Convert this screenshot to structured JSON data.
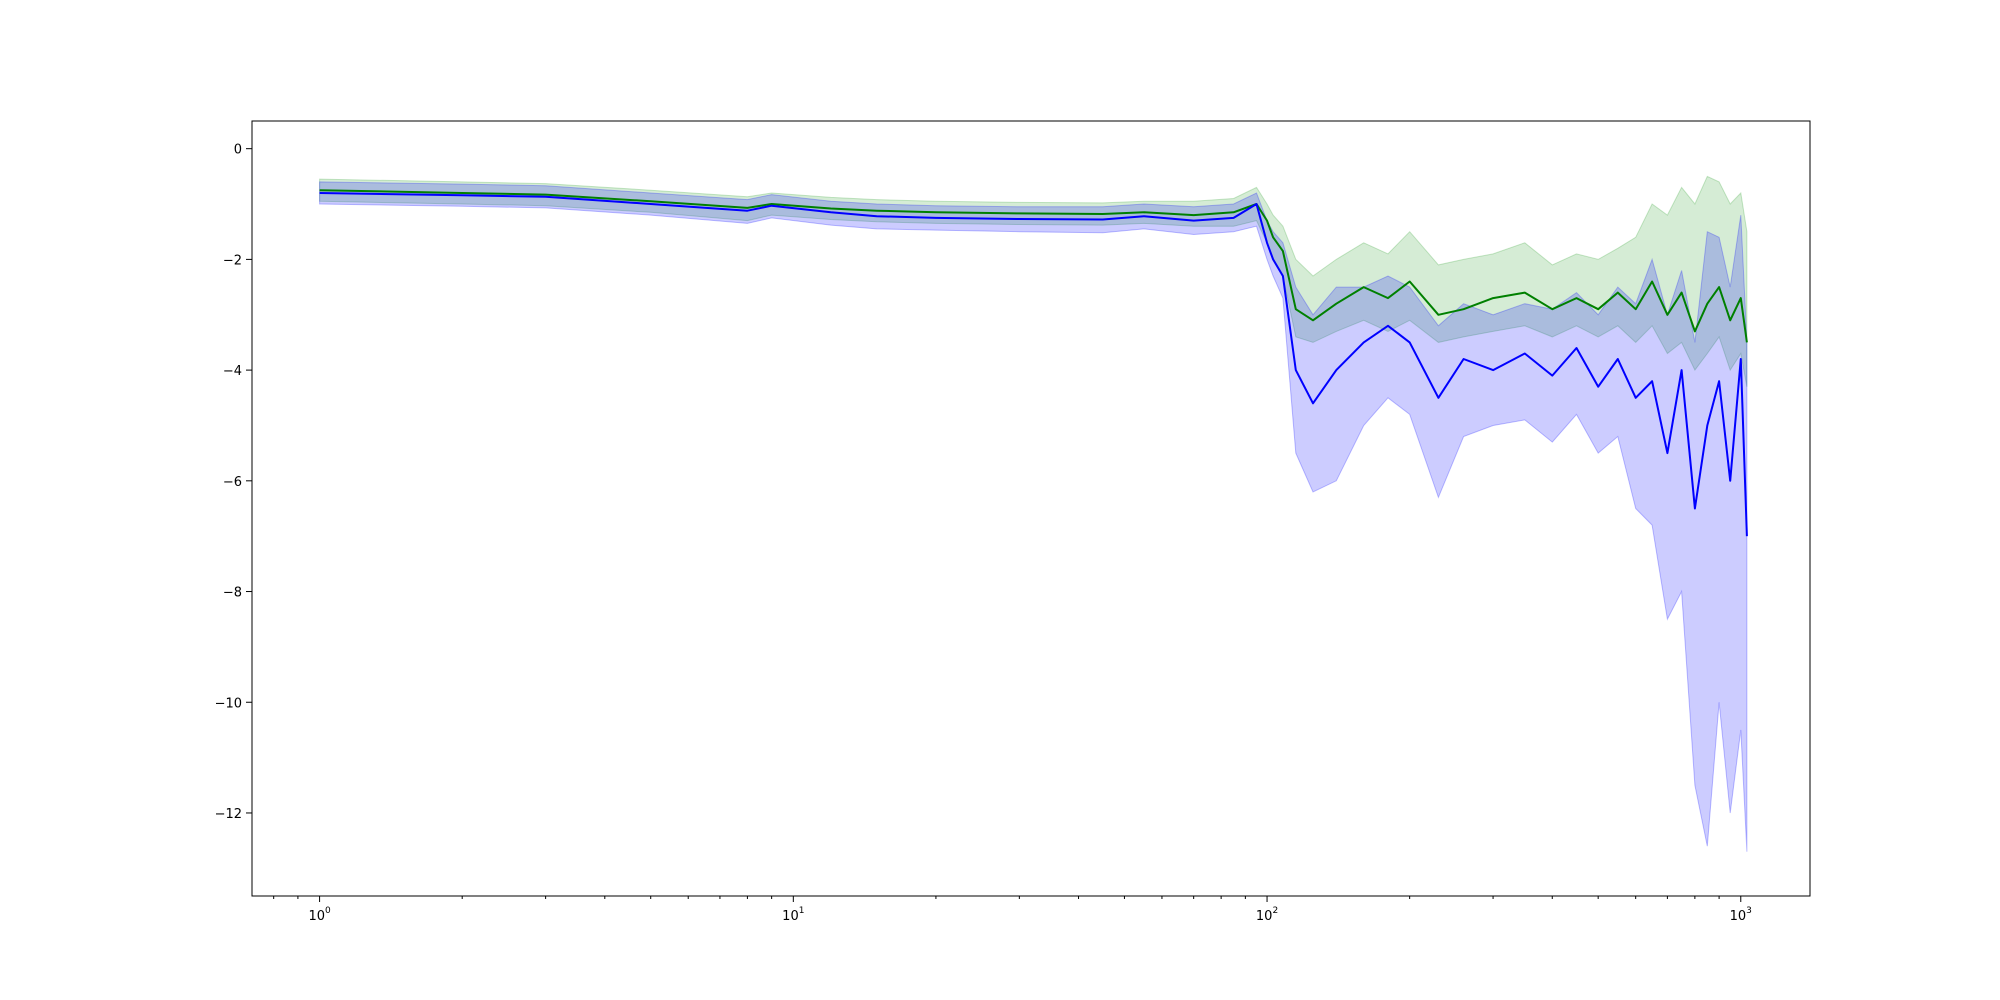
{
  "chart_data": {
    "type": "line",
    "title": "",
    "xlabel": "",
    "ylabel": "",
    "x_scale": "log",
    "xlim": [
      0.72,
      1400
    ],
    "ylim": [
      -13.5,
      0.5
    ],
    "grid": false,
    "legend": "none",
    "x_ticks": [
      {
        "base": "10",
        "exp": "0",
        "value": 1
      },
      {
        "base": "10",
        "exp": "1",
        "value": 10
      },
      {
        "base": "10",
        "exp": "2",
        "value": 100
      },
      {
        "base": "10",
        "exp": "3",
        "value": 1000
      }
    ],
    "y_ticks": [
      {
        "label": "0",
        "value": 0
      },
      {
        "label": "−2",
        "value": -2
      },
      {
        "label": "−4",
        "value": -4
      },
      {
        "label": "−6",
        "value": -6
      },
      {
        "label": "−8",
        "value": -8
      },
      {
        "label": "−10",
        "value": -10
      },
      {
        "label": "−12",
        "value": -12
      }
    ],
    "series": [
      {
        "color": "#008000",
        "band_color": "#2ca02c",
        "points": [
          [
            1,
            -0.75,
            -0.55,
            -0.95
          ],
          [
            2,
            -0.8,
            -0.6,
            -1.0
          ],
          [
            3,
            -0.83,
            -0.63,
            -1.03
          ],
          [
            5,
            -0.95,
            -0.75,
            -1.15
          ],
          [
            8,
            -1.07,
            -0.87,
            -1.3
          ],
          [
            9,
            -1.0,
            -0.8,
            -1.2
          ],
          [
            12,
            -1.08,
            -0.88,
            -1.28
          ],
          [
            15,
            -1.12,
            -0.92,
            -1.32
          ],
          [
            20,
            -1.15,
            -0.95,
            -1.35
          ],
          [
            30,
            -1.17,
            -0.97,
            -1.37
          ],
          [
            45,
            -1.18,
            -0.98,
            -1.38
          ],
          [
            55,
            -1.15,
            -0.95,
            -1.35
          ],
          [
            70,
            -1.2,
            -0.95,
            -1.4
          ],
          [
            85,
            -1.15,
            -0.9,
            -1.4
          ],
          [
            95,
            -1.0,
            -0.7,
            -1.3
          ],
          [
            100,
            -1.3,
            -1.0,
            -1.7
          ],
          [
            103,
            -1.6,
            -1.2,
            -2.0
          ],
          [
            108,
            -1.85,
            -1.4,
            -2.3
          ],
          [
            115,
            -2.9,
            -2.0,
            -3.4
          ],
          [
            125,
            -3.1,
            -2.3,
            -3.5
          ],
          [
            140,
            -2.8,
            -2.0,
            -3.3
          ],
          [
            160,
            -2.5,
            -1.7,
            -3.1
          ],
          [
            180,
            -2.7,
            -1.9,
            -3.3
          ],
          [
            200,
            -2.4,
            -1.5,
            -3.1
          ],
          [
            230,
            -3.0,
            -2.1,
            -3.5
          ],
          [
            260,
            -2.9,
            -2.0,
            -3.4
          ],
          [
            300,
            -2.7,
            -1.9,
            -3.3
          ],
          [
            350,
            -2.6,
            -1.7,
            -3.2
          ],
          [
            400,
            -2.9,
            -2.1,
            -3.4
          ],
          [
            450,
            -2.7,
            -1.9,
            -3.2
          ],
          [
            500,
            -2.9,
            -2.0,
            -3.4
          ],
          [
            550,
            -2.6,
            -1.8,
            -3.2
          ],
          [
            600,
            -2.9,
            -1.6,
            -3.5
          ],
          [
            650,
            -2.4,
            -1.0,
            -3.2
          ],
          [
            700,
            -3.0,
            -1.2,
            -3.7
          ],
          [
            750,
            -2.6,
            -0.7,
            -3.5
          ],
          [
            800,
            -3.3,
            -1.0,
            -4.0
          ],
          [
            850,
            -2.8,
            -0.5,
            -3.7
          ],
          [
            900,
            -2.5,
            -0.6,
            -3.4
          ],
          [
            950,
            -3.1,
            -1.0,
            -4.0
          ],
          [
            1000,
            -2.7,
            -0.8,
            -3.7
          ],
          [
            1030,
            -3.5,
            -1.5,
            -4.3
          ]
        ]
      },
      {
        "color": "#0000ff",
        "band_color": "#0000ff",
        "points": [
          [
            1,
            -0.8,
            -0.6,
            -1.0
          ],
          [
            2,
            -0.84,
            -0.64,
            -1.04
          ],
          [
            3,
            -0.87,
            -0.67,
            -1.07
          ],
          [
            5,
            -1.0,
            -0.8,
            -1.2
          ],
          [
            8,
            -1.12,
            -0.92,
            -1.35
          ],
          [
            9,
            -1.03,
            -0.83,
            -1.25
          ],
          [
            12,
            -1.15,
            -0.95,
            -1.38
          ],
          [
            15,
            -1.22,
            -1.0,
            -1.45
          ],
          [
            20,
            -1.25,
            -1.03,
            -1.47
          ],
          [
            30,
            -1.27,
            -1.05,
            -1.5
          ],
          [
            45,
            -1.28,
            -1.05,
            -1.52
          ],
          [
            55,
            -1.22,
            -1.0,
            -1.45
          ],
          [
            70,
            -1.3,
            -1.05,
            -1.55
          ],
          [
            85,
            -1.25,
            -1.0,
            -1.5
          ],
          [
            95,
            -1.0,
            -0.8,
            -1.4
          ],
          [
            100,
            -1.7,
            -1.3,
            -2.0
          ],
          [
            103,
            -2.0,
            -1.5,
            -2.3
          ],
          [
            108,
            -2.3,
            -1.7,
            -2.7
          ],
          [
            115,
            -4.0,
            -2.5,
            -5.5
          ],
          [
            125,
            -4.6,
            -3.0,
            -6.2
          ],
          [
            140,
            -4.0,
            -2.5,
            -6.0
          ],
          [
            160,
            -3.5,
            -2.5,
            -5.0
          ],
          [
            180,
            -3.2,
            -2.3,
            -4.5
          ],
          [
            200,
            -3.5,
            -2.5,
            -4.8
          ],
          [
            230,
            -4.5,
            -3.2,
            -6.3
          ],
          [
            260,
            -3.8,
            -2.8,
            -5.2
          ],
          [
            300,
            -4.0,
            -3.0,
            -5.0
          ],
          [
            350,
            -3.7,
            -2.8,
            -4.9
          ],
          [
            400,
            -4.1,
            -2.9,
            -5.3
          ],
          [
            450,
            -3.6,
            -2.6,
            -4.8
          ],
          [
            500,
            -4.3,
            -3.0,
            -5.5
          ],
          [
            550,
            -3.8,
            -2.5,
            -5.2
          ],
          [
            600,
            -4.5,
            -2.8,
            -6.5
          ],
          [
            650,
            -4.2,
            -2.0,
            -6.8
          ],
          [
            700,
            -5.5,
            -3.0,
            -8.5
          ],
          [
            750,
            -4.0,
            -2.2,
            -8.0
          ],
          [
            800,
            -6.5,
            -3.5,
            -11.5
          ],
          [
            850,
            -5.0,
            -1.5,
            -12.6
          ],
          [
            900,
            -4.2,
            -1.6,
            -10.0
          ],
          [
            950,
            -6.0,
            -2.5,
            -12.0
          ],
          [
            1000,
            -3.8,
            -1.2,
            -10.5
          ],
          [
            1030,
            -7.0,
            -3.5,
            -12.7
          ]
        ]
      }
    ]
  }
}
